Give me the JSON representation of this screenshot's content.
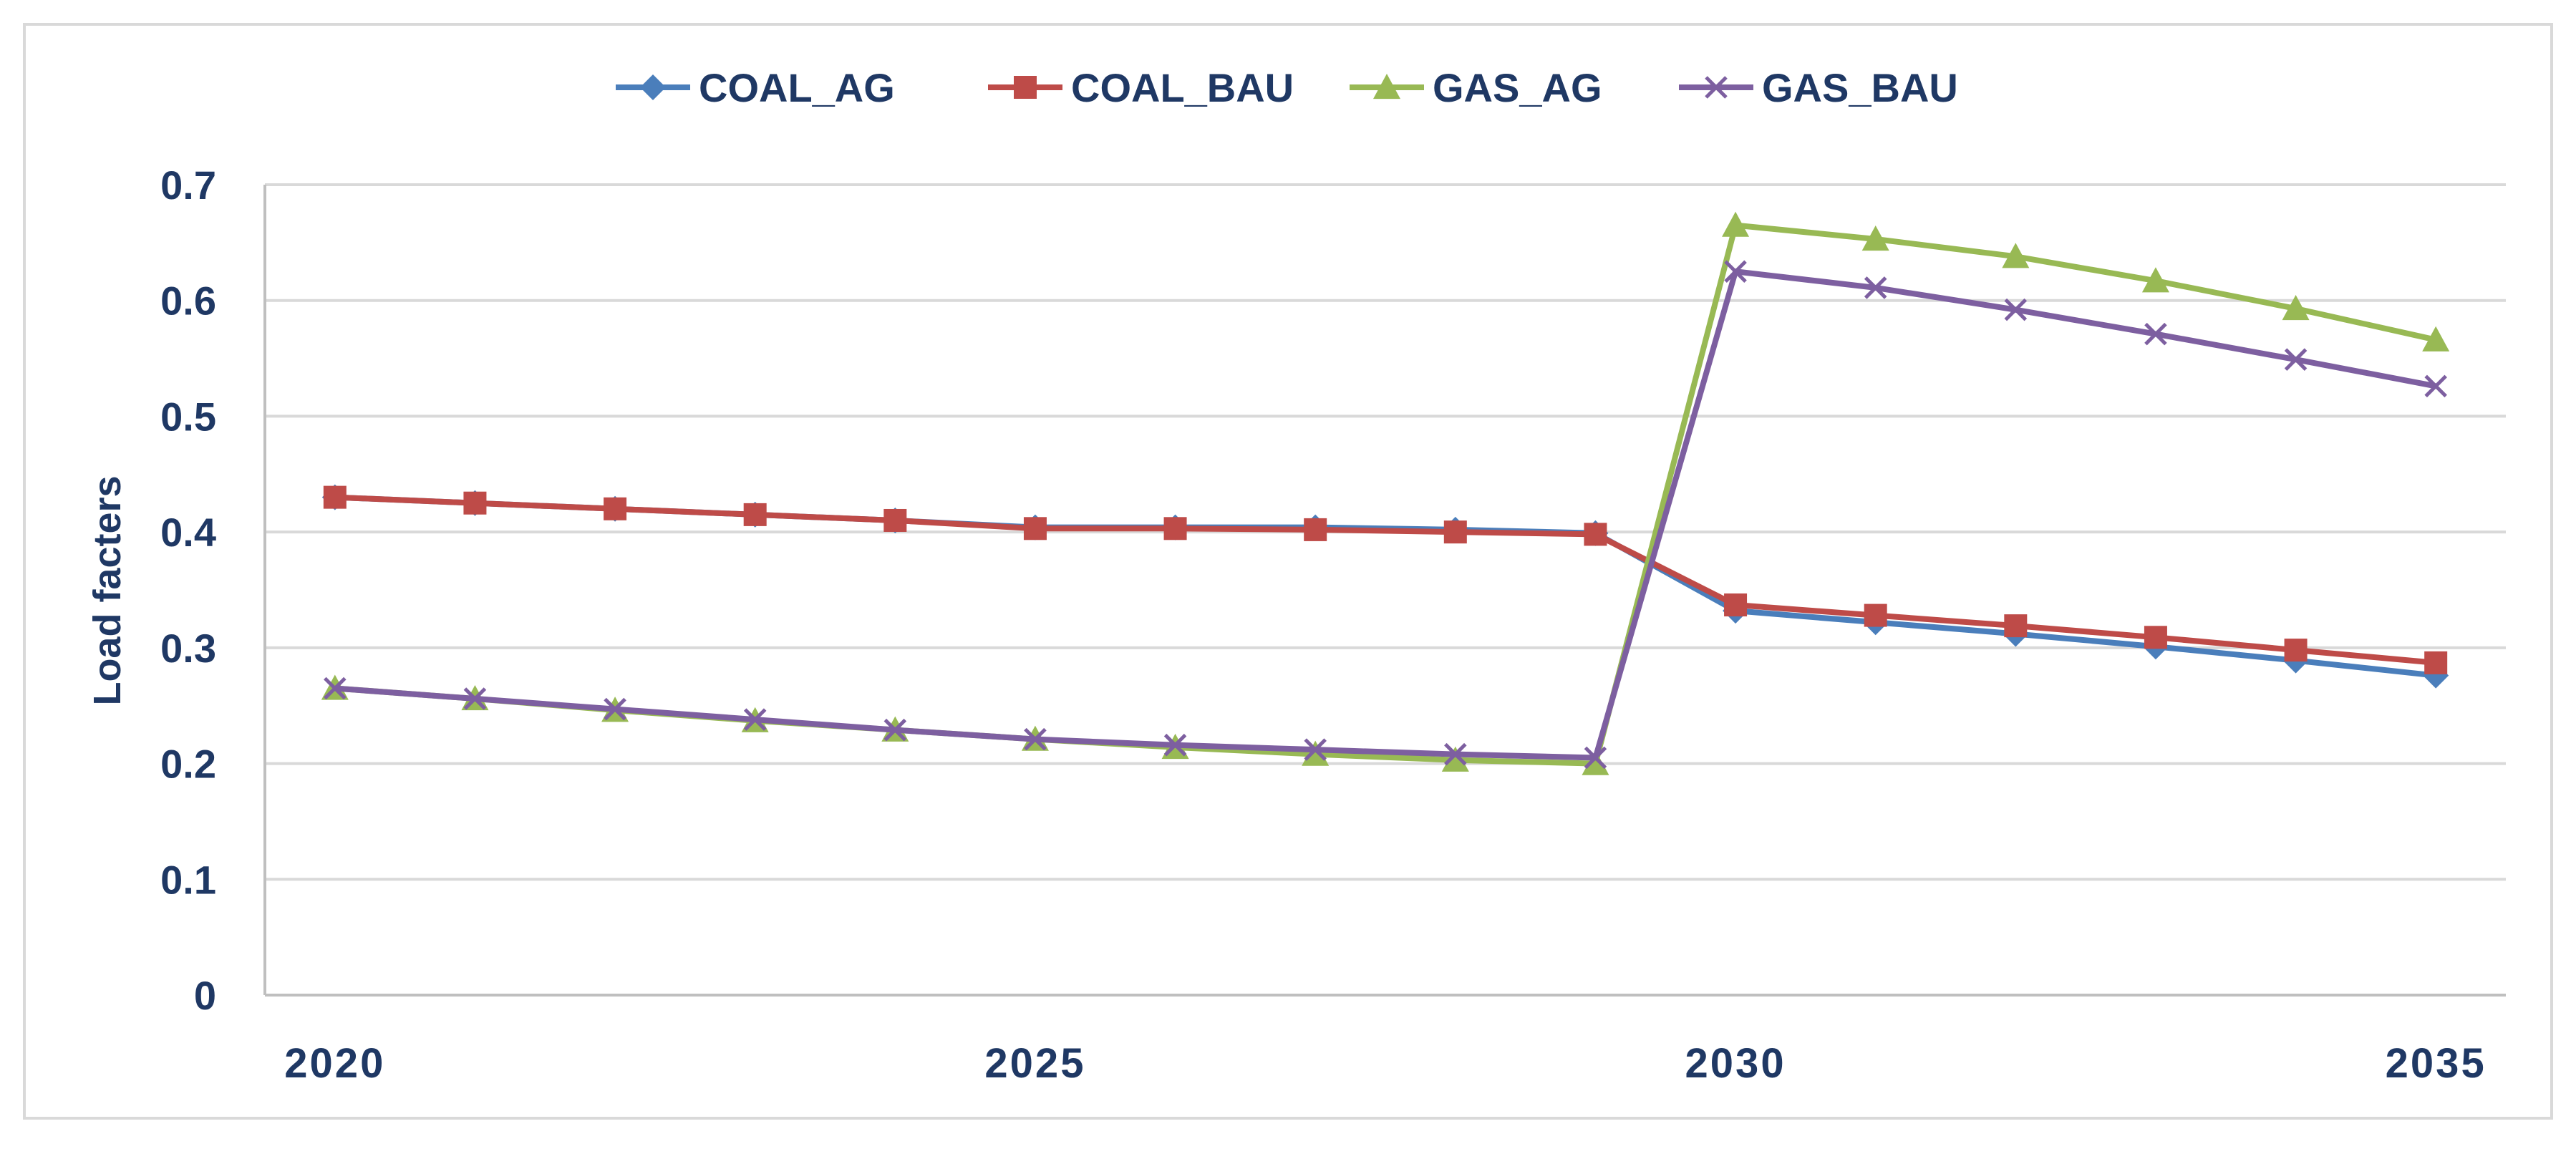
{
  "chart_data": {
    "type": "line",
    "title": "",
    "xlabel": "",
    "ylabel": "Load facters",
    "x": [
      2020,
      2021,
      2022,
      2023,
      2024,
      2025,
      2026,
      2027,
      2028,
      2029,
      2030,
      2031,
      2032,
      2033,
      2034,
      2035
    ],
    "xlim": [
      2019.5,
      2035.5
    ],
    "x_ticks": [
      2020,
      2025,
      2030,
      2035
    ],
    "x_tick_labels": [
      "2020",
      "2025",
      "2030",
      "2035"
    ],
    "ylim": [
      0,
      0.7
    ],
    "y_ticks": [
      0,
      0.1,
      0.2,
      0.3,
      0.4,
      0.5,
      0.6,
      0.7
    ],
    "y_tick_labels": [
      "0",
      "0.1",
      "0.2",
      "0.3",
      "0.4",
      "0.5",
      "0.6",
      "0.7"
    ],
    "grid": true,
    "legend_position": "top",
    "series": [
      {
        "name": "COAL_AG",
        "color": "#4a7ebb",
        "marker": "diamond",
        "values": [
          0.43,
          0.425,
          0.42,
          0.415,
          0.41,
          0.404,
          0.404,
          0.404,
          0.402,
          0.399,
          0.332,
          0.322,
          0.312,
          0.301,
          0.289,
          0.276
        ]
      },
      {
        "name": "COAL_BAU",
        "color": "#be4b48",
        "marker": "square",
        "values": [
          0.43,
          0.425,
          0.42,
          0.415,
          0.41,
          0.403,
          0.403,
          0.402,
          0.4,
          0.398,
          0.337,
          0.328,
          0.319,
          0.309,
          0.298,
          0.287
        ]
      },
      {
        "name": "GAS_AG",
        "color": "#98b954",
        "marker": "triangle",
        "values": [
          0.265,
          0.256,
          0.246,
          0.237,
          0.229,
          0.221,
          0.214,
          0.208,
          0.203,
          0.2,
          0.665,
          0.653,
          0.638,
          0.617,
          0.593,
          0.566
        ]
      },
      {
        "name": "GAS_BAU",
        "color": "#7d5fa0",
        "marker": "x",
        "values": [
          0.265,
          0.256,
          0.247,
          0.238,
          0.229,
          0.221,
          0.216,
          0.212,
          0.208,
          0.205,
          0.625,
          0.611,
          0.592,
          0.571,
          0.549,
          0.526
        ]
      }
    ]
  }
}
